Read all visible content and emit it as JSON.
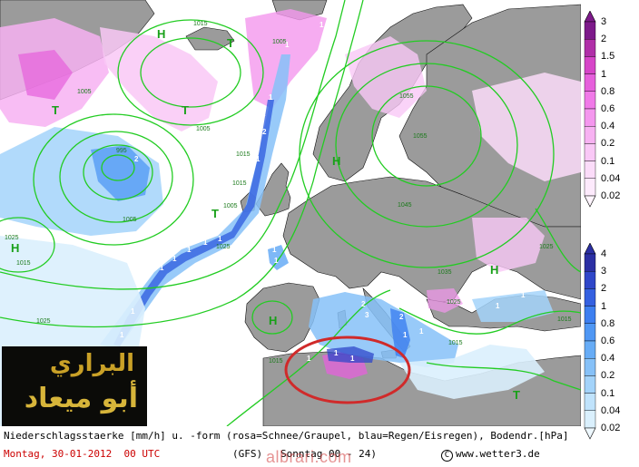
{
  "map": {
    "pressure_labels": [
      "1015",
      "1005",
      "1005",
      "1015",
      "1005",
      "1015",
      "1025",
      "1015",
      "1025",
      "1005",
      "1055",
      "1055",
      "1045",
      "1035",
      "1025",
      "1015",
      "1005",
      "1015",
      "1025",
      "1025",
      "995",
      "1015"
    ],
    "pressure_systems": [
      "H",
      "T",
      "T",
      "T",
      "T",
      "H",
      "H",
      "H",
      "T",
      "H"
    ],
    "precip_point_labels": [
      "1",
      "1",
      "1",
      "2",
      "1",
      "2",
      "1",
      "1",
      "1",
      "1",
      "1",
      "1",
      "1",
      "1",
      "1",
      "1",
      "1",
      "2",
      "3",
      "2",
      "1",
      "1",
      "1",
      "1",
      "1",
      "1",
      "1",
      "1"
    ],
    "highlight_ellipse_color": "#d02a2a",
    "isobar_color": "#22cc22",
    "land_color": "#9b9b9b",
    "sea_color": "#ffffff"
  },
  "legend_snow": {
    "title": "rosa=Schnee/Graupel",
    "levels": [
      "3",
      "2",
      "1.5",
      "1",
      "0.8",
      "0.6",
      "0.4",
      "0.2",
      "0.1",
      "0.04",
      "0.02"
    ],
    "colors": [
      "#7d1a8a",
      "#b02fa8",
      "#d645c8",
      "#e660dc",
      "#f07ae8",
      "#f497ee",
      "#f7b2f2",
      "#f9c8f6",
      "#fbdcf9",
      "#fdeafc",
      "#fff5fe"
    ]
  },
  "legend_rain": {
    "title": "blau=Regen/Eisregen",
    "levels": [
      "4",
      "3",
      "2",
      "1",
      "0.8",
      "0.6",
      "0.4",
      "0.2",
      "0.1",
      "0.04",
      "0.02"
    ],
    "colors": [
      "#2b2fa3",
      "#2f47c9",
      "#3460e0",
      "#3d7ff0",
      "#4f97f4",
      "#67acf6",
      "#86c1f8",
      "#a3d3fa",
      "#c0e3fc",
      "#daf0fd",
      "#eef8ff"
    ]
  },
  "caption": "Niederschlagsstaerke [mm/h] u. -form (rosa=Schnee/Graupel, blau=Regen/Eisregen), Bodendr.[hPa]",
  "run_date": "Montag, 30-01-2012  00 UTC",
  "model_info": "(GFS)   Sonntag 00 - 24)",
  "credit": "www.wetter3.de",
  "watermark": "albrari.com",
  "logo": {
    "line1": "البراري",
    "line2": "أبو ميعاد"
  }
}
